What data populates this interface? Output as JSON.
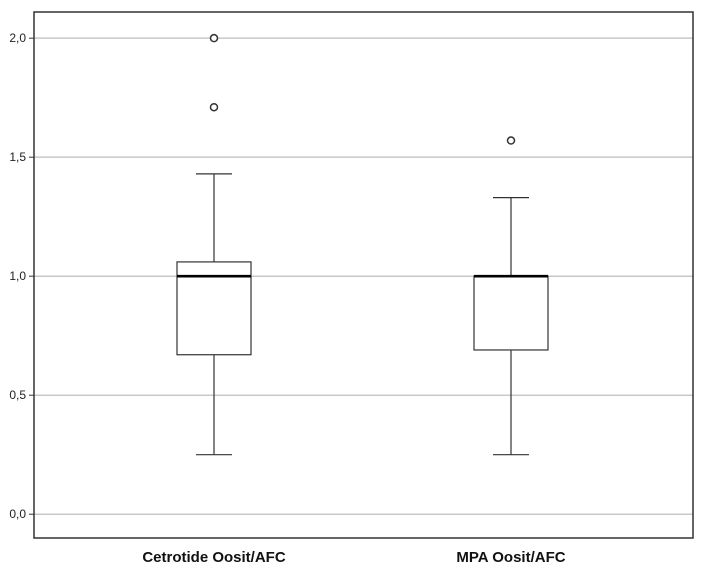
{
  "chart_data": {
    "type": "boxplot",
    "title": "",
    "xlabel": "",
    "ylabel": "",
    "ylim": [
      -0.1,
      2.11
    ],
    "yticks": [
      {
        "value": 0.0,
        "label": "0,0"
      },
      {
        "value": 0.5,
        "label": "0,5"
      },
      {
        "value": 1.0,
        "label": "1,0"
      },
      {
        "value": 1.5,
        "label": "1,5"
      },
      {
        "value": 2.0,
        "label": "2,0"
      }
    ],
    "grid": true,
    "legend": "none",
    "categories": [
      "Cetrotide Oosit/AFC",
      "MPA Oosit/AFC"
    ],
    "boxes": [
      {
        "category": "Cetrotide Oosit/AFC",
        "whisker_low": 0.25,
        "q1": 0.67,
        "median": 1.0,
        "q3": 1.06,
        "whisker_high": 1.43,
        "outliers": [
          1.71,
          2.0
        ]
      },
      {
        "category": "MPA Oosit/AFC",
        "whisker_low": 0.25,
        "q1": 0.69,
        "median": 1.0,
        "q3": 1.0,
        "whisker_high": 1.33,
        "outliers": [
          1.57
        ]
      }
    ],
    "colors": {
      "box_fill": "#ffffff",
      "stroke": "#333333",
      "grid": "#c8c8c8",
      "frame": "#333333"
    }
  }
}
